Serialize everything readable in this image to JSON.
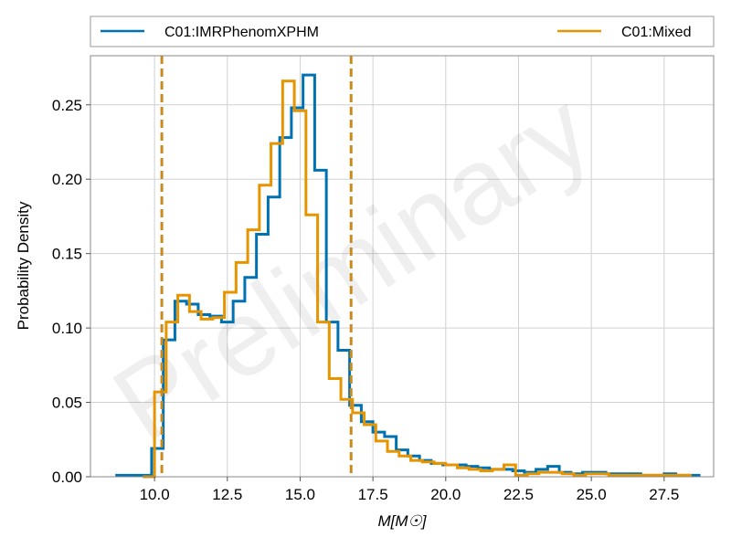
{
  "chart_data": {
    "type": "histogram",
    "xlabel": "M[M☉]",
    "ylabel": "Probability Density",
    "xlim": [
      7.8,
      29.2
    ],
    "ylim": [
      0,
      0.283
    ],
    "xticks": [
      10.0,
      12.5,
      15.0,
      17.5,
      20.0,
      22.5,
      25.0,
      27.5
    ],
    "xtick_labels": [
      "10.0",
      "12.5",
      "15.0",
      "17.5",
      "20.0",
      "22.5",
      "25.0",
      "27.5"
    ],
    "yticks": [
      0.0,
      0.05,
      0.1,
      0.15,
      0.2,
      0.25
    ],
    "ytick_labels": [
      "0.00",
      "0.05",
      "0.10",
      "0.15",
      "0.20",
      "0.25"
    ],
    "grid": true,
    "legend_placement": "above plot, spanning full width",
    "watermark": "Preliminary",
    "series": [
      {
        "name": "C01:IMRPhenomXPHM",
        "color": "#0072b2",
        "bin_width": 0.4,
        "edges_start": 8.7,
        "densities": [
          0.001,
          0.001,
          0.001,
          0.019,
          0.092,
          0.118,
          0.116,
          0.109,
          0.108,
          0.104,
          0.118,
          0.134,
          0.163,
          0.188,
          0.228,
          0.248,
          0.27,
          0.206,
          0.104,
          0.085,
          0.048,
          0.037,
          0.03,
          0.027,
          0.018,
          0.014,
          0.011,
          0.009,
          0.008,
          0.008,
          0.007,
          0.006,
          0.005,
          0.005,
          0.004,
          0.003,
          0.005,
          0.007,
          0.003,
          0.002,
          0.003,
          0.003,
          0.002,
          0.002,
          0.002,
          0.001,
          0.001,
          0.002,
          0.001,
          0.001
        ]
      },
      {
        "name": "C01:Mixed",
        "color": "#e69500",
        "bin_width": 0.4,
        "edges_start": 9.6,
        "densities": [
          0.0,
          0.057,
          0.104,
          0.122,
          0.111,
          0.106,
          0.107,
          0.124,
          0.144,
          0.166,
          0.196,
          0.224,
          0.266,
          0.246,
          0.176,
          0.104,
          0.066,
          0.052,
          0.043,
          0.035,
          0.024,
          0.017,
          0.014,
          0.011,
          0.01,
          0.009,
          0.008,
          0.006,
          0.005,
          0.004,
          0.005,
          0.008,
          0.001,
          0.002,
          0.003,
          0.003,
          0.002,
          0.001,
          0.002,
          0.002,
          0.001,
          0.001,
          0.001,
          0.001,
          0.001,
          0.001,
          0.001
        ]
      }
    ],
    "vlines": [
      {
        "x": 10.25,
        "style": "dashed",
        "color": "#c98a1e"
      },
      {
        "x": 16.75,
        "style": "dashed",
        "color": "#c98a1e"
      }
    ]
  }
}
